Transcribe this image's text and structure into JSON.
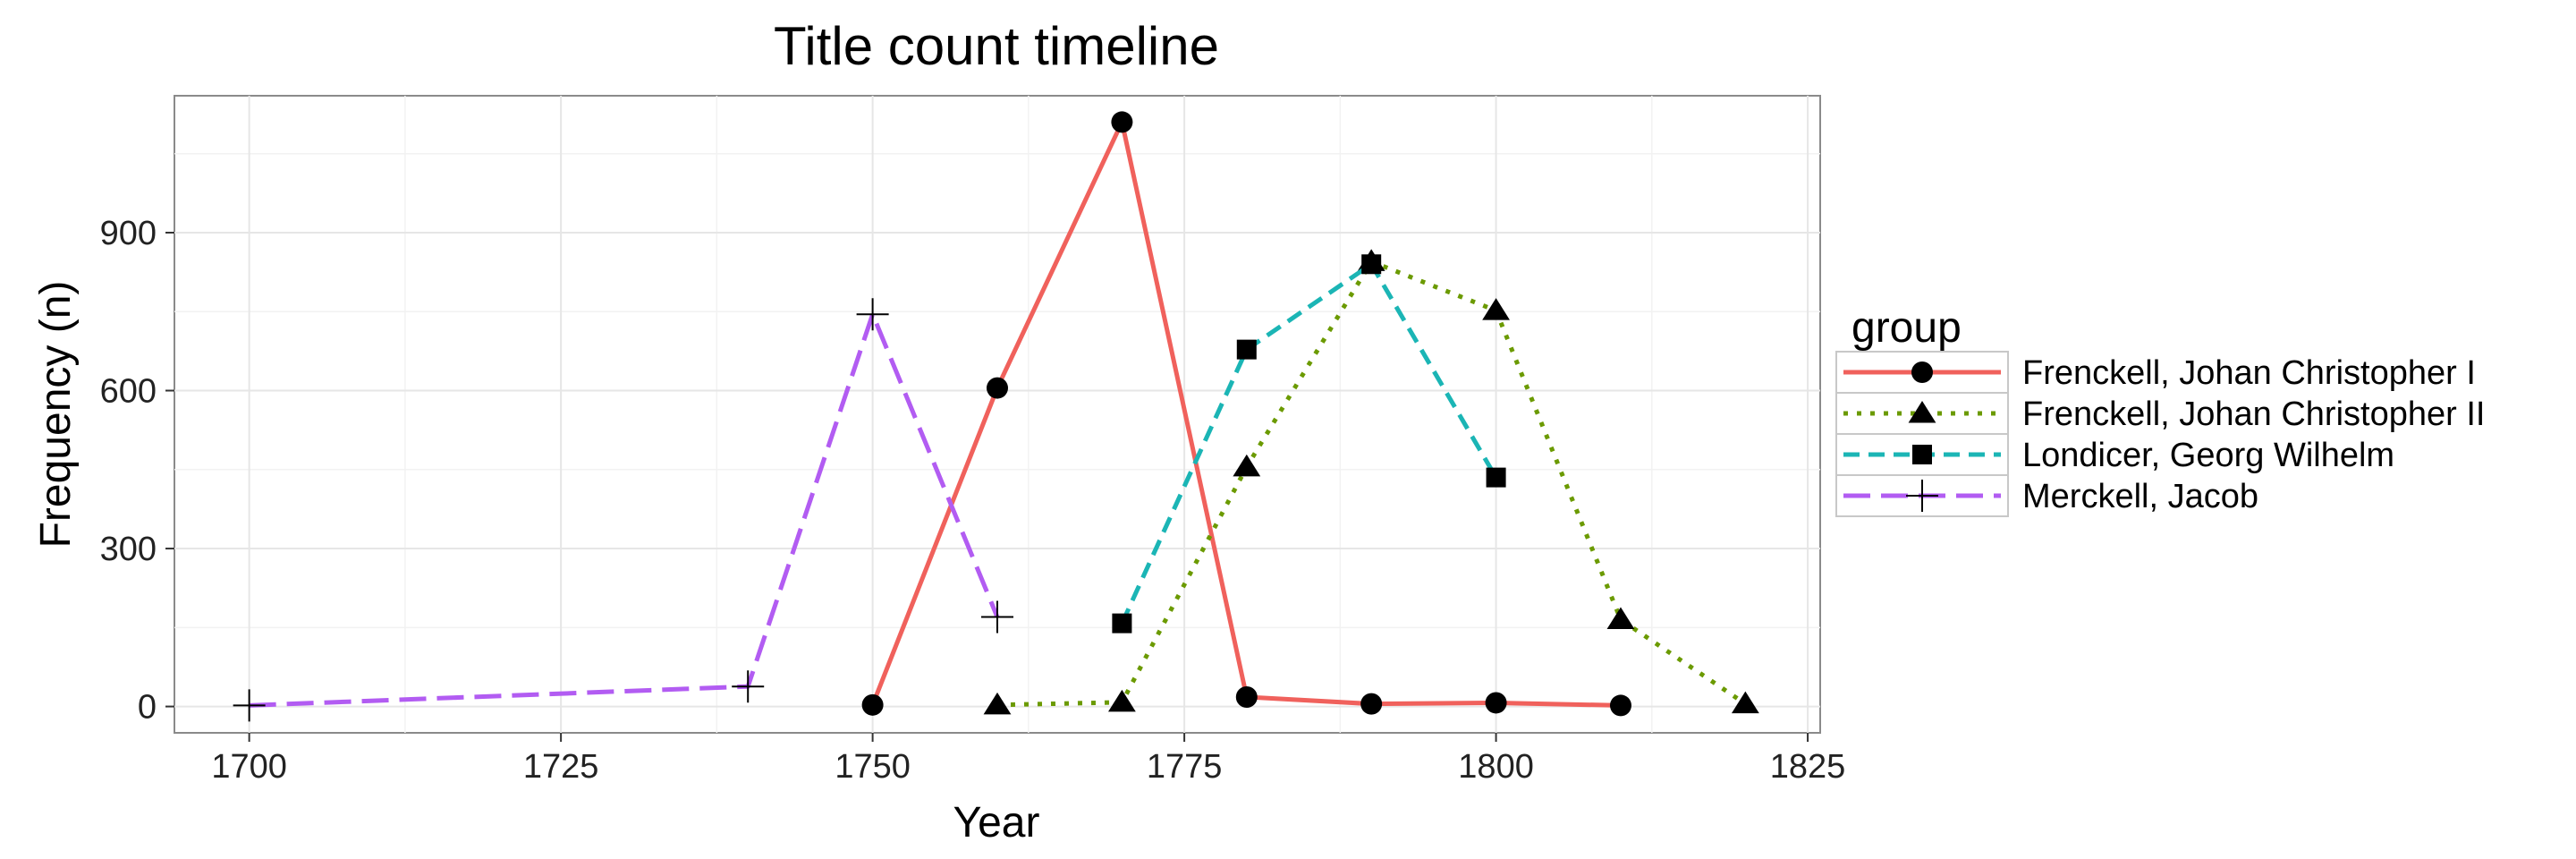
{
  "chart_data": {
    "type": "line",
    "title": "Title count timeline",
    "xlabel": "Year",
    "ylabel": "Frequency (n)",
    "xlim": [
      1694,
      1826
    ],
    "ylim": [
      -50,
      1160
    ],
    "x_ticks": [
      1700,
      1725,
      1750,
      1775,
      1800,
      1825
    ],
    "y_ticks": [
      0,
      300,
      600,
      900
    ],
    "grid": true,
    "legend": {
      "title": "group",
      "position": "right"
    },
    "series": [
      {
        "name": "Frenckell, Johan Christopher I",
        "color": "#F0615C",
        "dash": "solid",
        "marker": "circle",
        "points": [
          [
            1750,
            3
          ],
          [
            1760,
            605
          ],
          [
            1770,
            1110
          ],
          [
            1780,
            18
          ],
          [
            1790,
            5
          ],
          [
            1800,
            7
          ],
          [
            1810,
            2
          ]
        ]
      },
      {
        "name": "Frenckell, Johan Christopher II",
        "color": "#6B9A00",
        "dash": "dotted",
        "marker": "triangle",
        "points": [
          [
            1760,
            3
          ],
          [
            1770,
            8
          ],
          [
            1780,
            455
          ],
          [
            1790,
            845
          ],
          [
            1800,
            752
          ],
          [
            1810,
            165
          ],
          [
            1820,
            5
          ]
        ]
      },
      {
        "name": "Londicer, Georg Wilhelm",
        "color": "#1BB5B5",
        "dash": "dashed",
        "marker": "square",
        "points": [
          [
            1770,
            158
          ],
          [
            1780,
            678
          ],
          [
            1790,
            840
          ],
          [
            1800,
            435
          ]
        ]
      },
      {
        "name": "Merckell, Jacob",
        "color": "#B25CF2",
        "dash": "longdash",
        "marker": "plus",
        "points": [
          [
            1700,
            2
          ],
          [
            1740,
            38
          ],
          [
            1750,
            745
          ],
          [
            1760,
            170
          ]
        ]
      }
    ]
  }
}
